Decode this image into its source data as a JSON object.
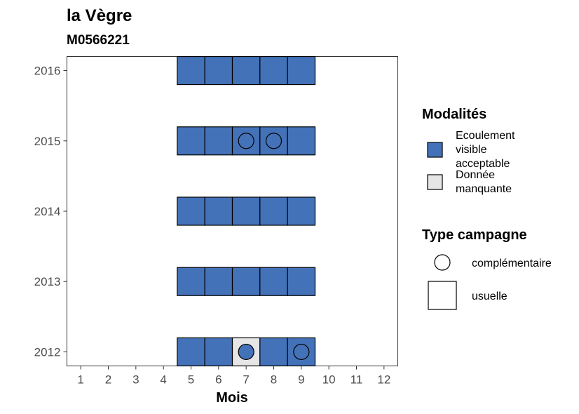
{
  "title": "la Vègre",
  "subtitle": "M0566221",
  "chart_data": {
    "type": "heatmap",
    "xlabel": "Mois",
    "ylabel": "",
    "x_ticks": [
      "1",
      "2",
      "3",
      "4",
      "5",
      "6",
      "7",
      "8",
      "9",
      "10",
      "11",
      "12"
    ],
    "y_ticks": [
      "2012",
      "2013",
      "2014",
      "2015",
      "2016"
    ],
    "xlim": [
      0.5,
      12.5
    ],
    "ylim": [
      2011.8,
      2016.2
    ],
    "grid": false,
    "legend_placement": "right",
    "fill_legend": {
      "title": "Modalités",
      "entries": [
        {
          "key": "ecoulement",
          "label_lines": [
            "Ecoulement",
            "visible",
            "acceptable"
          ],
          "color": "#4472b8"
        },
        {
          "key": "manquante",
          "label_lines": [
            "Donnée",
            "manquante"
          ],
          "color": "#e6e6e6"
        }
      ]
    },
    "shape_legend": {
      "title": "Type campagne",
      "entries": [
        {
          "key": "complementaire",
          "label": "complémentaire",
          "shape": "circle"
        },
        {
          "key": "usuelle",
          "label": "usuelle",
          "shape": "square"
        }
      ]
    },
    "cells": [
      {
        "year": 2012,
        "month": 5,
        "modalite": "ecoulement",
        "campagne": "usuelle"
      },
      {
        "year": 2012,
        "month": 6,
        "modalite": "ecoulement",
        "campagne": "usuelle"
      },
      {
        "year": 2012,
        "month": 7,
        "modalite": "manquante",
        "campagne": "usuelle"
      },
      {
        "year": 2012,
        "month": 7,
        "modalite": "ecoulement",
        "campagne": "complementaire"
      },
      {
        "year": 2012,
        "month": 8,
        "modalite": "ecoulement",
        "campagne": "usuelle"
      },
      {
        "year": 2012,
        "month": 9,
        "modalite": "ecoulement",
        "campagne": "usuelle"
      },
      {
        "year": 2012,
        "month": 9,
        "modalite": "ecoulement",
        "campagne": "complementaire"
      },
      {
        "year": 2013,
        "month": 5,
        "modalite": "ecoulement",
        "campagne": "usuelle"
      },
      {
        "year": 2013,
        "month": 6,
        "modalite": "ecoulement",
        "campagne": "usuelle"
      },
      {
        "year": 2013,
        "month": 7,
        "modalite": "ecoulement",
        "campagne": "usuelle"
      },
      {
        "year": 2013,
        "month": 8,
        "modalite": "ecoulement",
        "campagne": "usuelle"
      },
      {
        "year": 2013,
        "month": 9,
        "modalite": "ecoulement",
        "campagne": "usuelle"
      },
      {
        "year": 2014,
        "month": 5,
        "modalite": "ecoulement",
        "campagne": "usuelle"
      },
      {
        "year": 2014,
        "month": 6,
        "modalite": "ecoulement",
        "campagne": "usuelle"
      },
      {
        "year": 2014,
        "month": 7,
        "modalite": "ecoulement",
        "campagne": "usuelle"
      },
      {
        "year": 2014,
        "month": 8,
        "modalite": "ecoulement",
        "campagne": "usuelle"
      },
      {
        "year": 2014,
        "month": 9,
        "modalite": "ecoulement",
        "campagne": "usuelle"
      },
      {
        "year": 2015,
        "month": 5,
        "modalite": "ecoulement",
        "campagne": "usuelle"
      },
      {
        "year": 2015,
        "month": 6,
        "modalite": "ecoulement",
        "campagne": "usuelle"
      },
      {
        "year": 2015,
        "month": 7,
        "modalite": "ecoulement",
        "campagne": "usuelle"
      },
      {
        "year": 2015,
        "month": 7,
        "modalite": "ecoulement",
        "campagne": "complementaire"
      },
      {
        "year": 2015,
        "month": 8,
        "modalite": "ecoulement",
        "campagne": "usuelle"
      },
      {
        "year": 2015,
        "month": 8,
        "modalite": "ecoulement",
        "campagne": "complementaire"
      },
      {
        "year": 2015,
        "month": 9,
        "modalite": "ecoulement",
        "campagne": "usuelle"
      },
      {
        "year": 2016,
        "month": 5,
        "modalite": "ecoulement",
        "campagne": "usuelle"
      },
      {
        "year": 2016,
        "month": 6,
        "modalite": "ecoulement",
        "campagne": "usuelle"
      },
      {
        "year": 2016,
        "month": 7,
        "modalite": "ecoulement",
        "campagne": "usuelle"
      },
      {
        "year": 2016,
        "month": 8,
        "modalite": "ecoulement",
        "campagne": "usuelle"
      },
      {
        "year": 2016,
        "month": 9,
        "modalite": "ecoulement",
        "campagne": "usuelle"
      }
    ]
  }
}
